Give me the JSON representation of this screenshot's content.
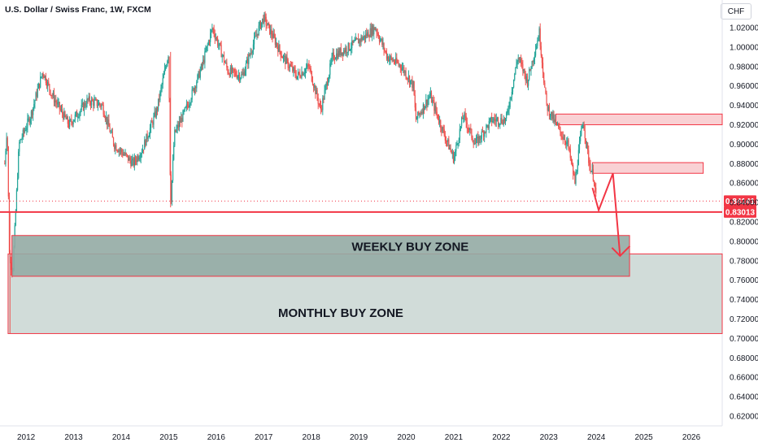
{
  "header": {
    "title": "U.S. Dollar / Swiss Franc, 1W, FXCM",
    "currency": "CHF"
  },
  "chart_data": {
    "type": "candlestick",
    "title": "U.S. Dollar / Swiss Franc, 1W, FXCM",
    "ylabel": "CHF",
    "ylim": [
      0.61,
      1.03
    ],
    "xlim": [
      2011.45,
      2026.65
    ],
    "y_ticks": [
      "1.02000",
      "1.00000",
      "0.98000",
      "0.96000",
      "0.94000",
      "0.92000",
      "0.90000",
      "0.88000",
      "0.86000",
      "0.84000",
      "0.82000",
      "0.80000",
      "0.78000",
      "0.76000",
      "0.74000",
      "0.72000",
      "0.70000",
      "0.68000",
      "0.66000",
      "0.64000",
      "0.62000"
    ],
    "x_ticks": [
      "2012",
      "2013",
      "2014",
      "2015",
      "2016",
      "2017",
      "2018",
      "2019",
      "2020",
      "2021",
      "2022",
      "2023",
      "2024",
      "2025",
      "2026"
    ],
    "price_markers": [
      {
        "label": "0.84141",
        "value": 0.84141,
        "style": "dotted"
      },
      {
        "label": "0.83013",
        "value": 0.83013,
        "style": "solid"
      }
    ],
    "path_points": [
      [
        2011.55,
        0.88
      ],
      [
        2011.6,
        0.92
      ],
      [
        2011.65,
        0.78
      ],
      [
        2011.72,
        0.77
      ],
      [
        2011.85,
        0.9
      ],
      [
        2012.1,
        0.93
      ],
      [
        2012.35,
        0.975
      ],
      [
        2012.55,
        0.95
      ],
      [
        2012.9,
        0.92
      ],
      [
        2013.3,
        0.945
      ],
      [
        2013.6,
        0.94
      ],
      [
        2013.85,
        0.9
      ],
      [
        2014.25,
        0.88
      ],
      [
        2014.45,
        0.895
      ],
      [
        2014.75,
        0.935
      ],
      [
        2015.0,
        0.995
      ],
      [
        2015.04,
        0.835
      ],
      [
        2015.12,
        0.91
      ],
      [
        2015.4,
        0.94
      ],
      [
        2015.7,
        0.98
      ],
      [
        2015.92,
        1.02
      ],
      [
        2016.25,
        0.975
      ],
      [
        2016.55,
        0.97
      ],
      [
        2016.9,
        1.02
      ],
      [
        2017.0,
        1.03
      ],
      [
        2017.4,
        0.99
      ],
      [
        2017.7,
        0.97
      ],
      [
        2017.95,
        0.98
      ],
      [
        2018.2,
        0.935
      ],
      [
        2018.45,
        0.99
      ],
      [
        2018.8,
        1.0
      ],
      [
        2019.1,
        1.01
      ],
      [
        2019.35,
        1.02
      ],
      [
        2019.6,
        0.99
      ],
      [
        2019.9,
        0.98
      ],
      [
        2020.15,
        0.96
      ],
      [
        2020.2,
        0.925
      ],
      [
        2020.5,
        0.95
      ],
      [
        2020.8,
        0.91
      ],
      [
        2021.0,
        0.885
      ],
      [
        2021.2,
        0.93
      ],
      [
        2021.45,
        0.9
      ],
      [
        2021.8,
        0.925
      ],
      [
        2022.1,
        0.925
      ],
      [
        2022.35,
        0.99
      ],
      [
        2022.55,
        0.965
      ],
      [
        2022.8,
        1.015
      ],
      [
        2022.95,
        0.94
      ],
      [
        2023.15,
        0.92
      ],
      [
        2023.4,
        0.9
      ],
      [
        2023.55,
        0.86
      ],
      [
        2023.65,
        0.9
      ],
      [
        2023.72,
        0.925
      ],
      [
        2023.85,
        0.88
      ],
      [
        2023.95,
        0.865
      ],
      [
        2024.0,
        0.841
      ]
    ],
    "zones": [
      {
        "name": "resistance-zone-upper",
        "y_top": 0.931,
        "y_bottom": 0.92,
        "x_start": 2023.15,
        "x_end": 2026.65
      },
      {
        "name": "resistance-zone-lower",
        "y_top": 0.881,
        "y_bottom": 0.87,
        "x_start": 2023.92,
        "x_end": 2026.25
      },
      {
        "name": "weekly-buy-zone",
        "label": "WEEKLY BUY ZONE",
        "y_top": 0.806,
        "y_bottom": 0.764,
        "x_start": 2011.7,
        "x_end": 2024.7
      },
      {
        "name": "monthly-buy-zone",
        "label": "MONTHLY BUY ZONE",
        "y_top": 0.787,
        "y_bottom": 0.705,
        "x_start": 2011.62,
        "x_end": 2026.65
      }
    ],
    "projection": [
      [
        2023.92,
        0.855
      ],
      [
        2024.05,
        0.832
      ],
      [
        2024.35,
        0.87
      ],
      [
        2024.5,
        0.785
      ]
    ]
  },
  "colors": {
    "up": "#26a69a",
    "down": "#ef5350",
    "zone_red_fill": "#f8c9cc",
    "zone_red_stroke": "#f23645",
    "weekly_fill": "#93aba4",
    "monthly_fill": "#cfdad7",
    "arrow": "#f23645"
  }
}
